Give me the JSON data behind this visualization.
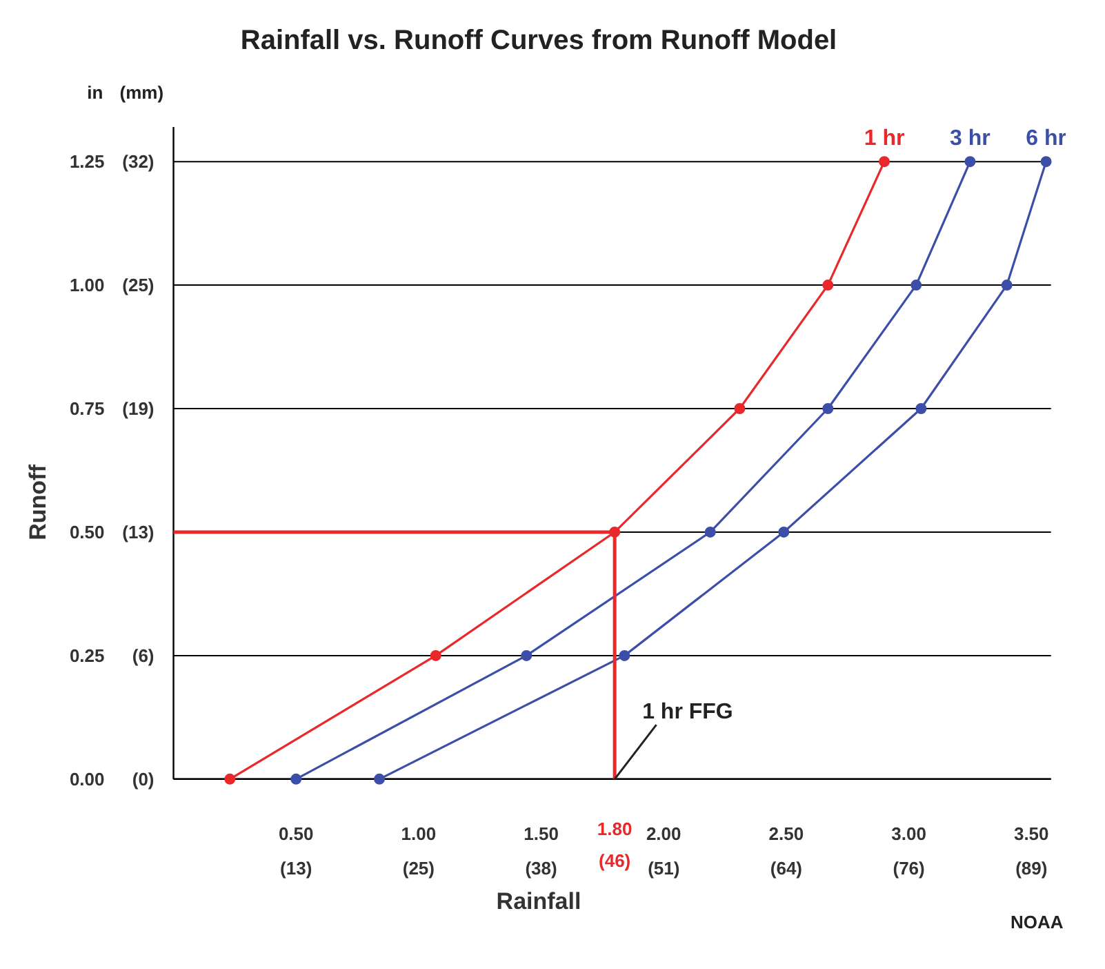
{
  "chart_data": {
    "type": "line",
    "title": "Rainfall vs. Runoff Curves from Runoff Model",
    "xlabel": "Rainfall",
    "ylabel": "Runoff",
    "annotations": [
      "in",
      "(mm)",
      "NOAA",
      "1.80",
      "(46)",
      {
        "text": "1 hr FFG",
        "x": 1.8,
        "y": 0
      }
    ],
    "xlim": [
      0,
      3.58
    ],
    "ylim": [
      0,
      1.32
    ],
    "xticks": [
      {
        "value": 0.5,
        "label": "0.50"
      },
      {
        "value": 1.0,
        "label": "1.00"
      },
      {
        "value": 1.5,
        "label": "1.50"
      },
      {
        "value": 2.0,
        "label": "2.00"
      },
      {
        "value": 2.5,
        "label": "2.50"
      },
      {
        "value": 3.0,
        "label": "3.00"
      },
      {
        "value": 3.5,
        "label": "3.50"
      }
    ],
    "yticks": [
      {
        "value": 0,
        "label": "0.00"
      },
      {
        "value": 0.25,
        "label": "0.25"
      },
      {
        "value": 0.5,
        "label": "0.50"
      },
      {
        "value": 0.75,
        "label": "0.75"
      },
      {
        "value": 1.0,
        "label": "1.00"
      },
      {
        "value": 1.25,
        "label": "1.25"
      }
    ],
    "x2lim": [
      0,
      90.93
    ],
    "x2ticks": [
      {
        "value": 12.7,
        "label": "(13)"
      },
      {
        "value": 25.4,
        "label": "(25)"
      },
      {
        "value": 38.1,
        "label": "(38)"
      },
      {
        "value": 50.8,
        "label": "(51)"
      },
      {
        "value": 63.5,
        "label": "(64)"
      },
      {
        "value": 76.2,
        "label": "(76)"
      },
      {
        "value": 88.9,
        "label": "(89)"
      }
    ],
    "y2lim": [
      0,
      33.53
    ],
    "y2ticks": [
      {
        "value": 0,
        "label": "(0)"
      },
      {
        "value": 6.35,
        "label": "(6)"
      },
      {
        "value": 12.7,
        "label": "(13)"
      },
      {
        "value": 19.05,
        "label": "(19)"
      },
      {
        "value": 25.4,
        "label": "(25)"
      },
      {
        "value": 31.75,
        "label": "(32)"
      }
    ],
    "grid": "y",
    "marker": "circle",
    "line_style": "solid",
    "series": [
      {
        "name": "1 hr",
        "color": "#e8282b",
        "x": [
          0.23,
          1.07,
          1.8,
          2.31,
          2.67,
          2.9
        ],
        "values": [
          0,
          0.25,
          0.5,
          0.75,
          1.0,
          1.25
        ]
      },
      {
        "name": "3 hr",
        "color": "#3c4fa8",
        "x": [
          0.5,
          1.44,
          2.19,
          2.67,
          3.03,
          3.25
        ],
        "values": [
          0,
          0.25,
          0.5,
          0.75,
          1.0,
          1.25
        ]
      },
      {
        "name": "6 hr",
        "color": "#3c4fa8",
        "x": [
          0.84,
          1.84,
          2.49,
          3.05,
          3.4,
          3.56
        ],
        "values": [
          0,
          0.25,
          0.5,
          0.75,
          1.0,
          1.25
        ]
      },
      {
        "color": "#e8282b",
        "marker": "none",
        "x": [
          0,
          1.8,
          1.8
        ],
        "values": [
          0.5,
          0.5,
          0
        ]
      }
    ]
  }
}
